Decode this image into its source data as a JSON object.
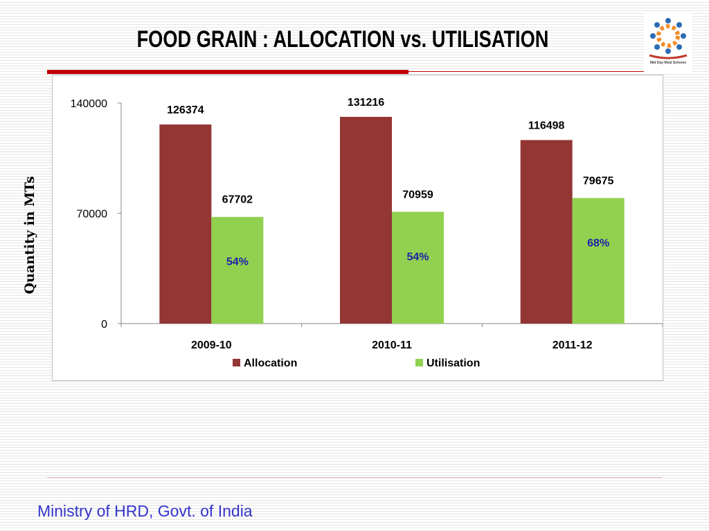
{
  "slide": {
    "title": "FOOD GRAIN : ALLOCATION vs. UTILISATION",
    "footer": "Ministry of HRD, Govt. of India",
    "logo_text": "Mid Day Meal Scheme"
  },
  "colors": {
    "allocation": "#943634",
    "utilisation": "#92d050",
    "percent_label": "#1f1fa8",
    "accent_red": "#c00000",
    "footer_text": "#3333cc"
  },
  "chart_data": {
    "type": "bar",
    "title": "",
    "xlabel": "",
    "ylabel": "Quantity in MTs",
    "categories": [
      "2009-10",
      "2010-11",
      "2011-12"
    ],
    "series": [
      {
        "name": "Allocation",
        "values": [
          126374,
          131216,
          116498
        ]
      },
      {
        "name": "Utilisation",
        "values": [
          67702,
          70959,
          79675
        ]
      }
    ],
    "percent_labels": [
      "54%",
      "54%",
      "68%"
    ],
    "ylim": [
      0,
      140000
    ],
    "yticks": [
      "0",
      "70000",
      "140000"
    ],
    "grid": false,
    "legend": "bottom"
  }
}
